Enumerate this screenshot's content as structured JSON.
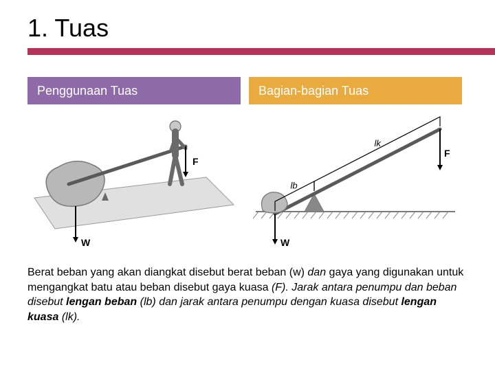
{
  "title": "1. Tuas",
  "title_rule_color": "#b4325a",
  "header_left": {
    "label": "Penggunaan Tuas",
    "bg": "#8f6aa8",
    "fg": "#ffffff"
  },
  "header_right": {
    "label": "Bagian-bagian Tuas",
    "bg": "#e9ab3f",
    "fg": "#ffffff"
  },
  "diagram_left": {
    "type": "lever-illustration",
    "labels": {
      "force": "F",
      "weight": "W"
    },
    "colors": {
      "ground_fill": "#e0e0e0",
      "ground_stroke": "#9a9a9a",
      "rock_fill": "#b8b8b8",
      "rock_stroke": "#7a7a7a",
      "lever": "#5a5a5a",
      "person_fill": "#c8c8c8",
      "person_stroke": "#6a6a6a",
      "text": "#000000",
      "arrow": "#000000"
    }
  },
  "diagram_right": {
    "type": "lever-schematic",
    "labels": {
      "force": "F",
      "weight": "W",
      "load_arm": "lb",
      "effort_arm": "lk"
    },
    "colors": {
      "ground": "#7a7a7a",
      "hatch": "#7a7a7a",
      "lever": "#5a5a5a",
      "fulcrum": "#888888",
      "rock_fill": "#bcbcbc",
      "rock_stroke": "#7a7a7a",
      "arrow": "#000000",
      "bracket": "#000000",
      "text": "#000000"
    }
  },
  "caption": {
    "parts": [
      {
        "t": "Berat beban yang akan diangkat disebut  berat beban (w) "
      },
      {
        "t": "dan",
        "i": true
      },
      {
        "t": " gaya yang digunakan untuk mengangkat batu atau beban disebut  gaya kuasa "
      },
      {
        "t": "(F).",
        "i": true
      },
      {
        "t": " Jarak antara penumpu dan beban disebut ",
        "i": true
      },
      {
        "t": "lengan beban ",
        "b": true
      },
      {
        "t": "(lb) ",
        "i": true
      },
      {
        "t": "dan",
        "i": true
      },
      {
        "t": " jarak antara penumpu dengan kuasa disebut ",
        "i": true
      },
      {
        "t": "lengan kuasa ",
        "b": true
      },
      {
        "t": "(lk).",
        "i": true
      }
    ]
  }
}
